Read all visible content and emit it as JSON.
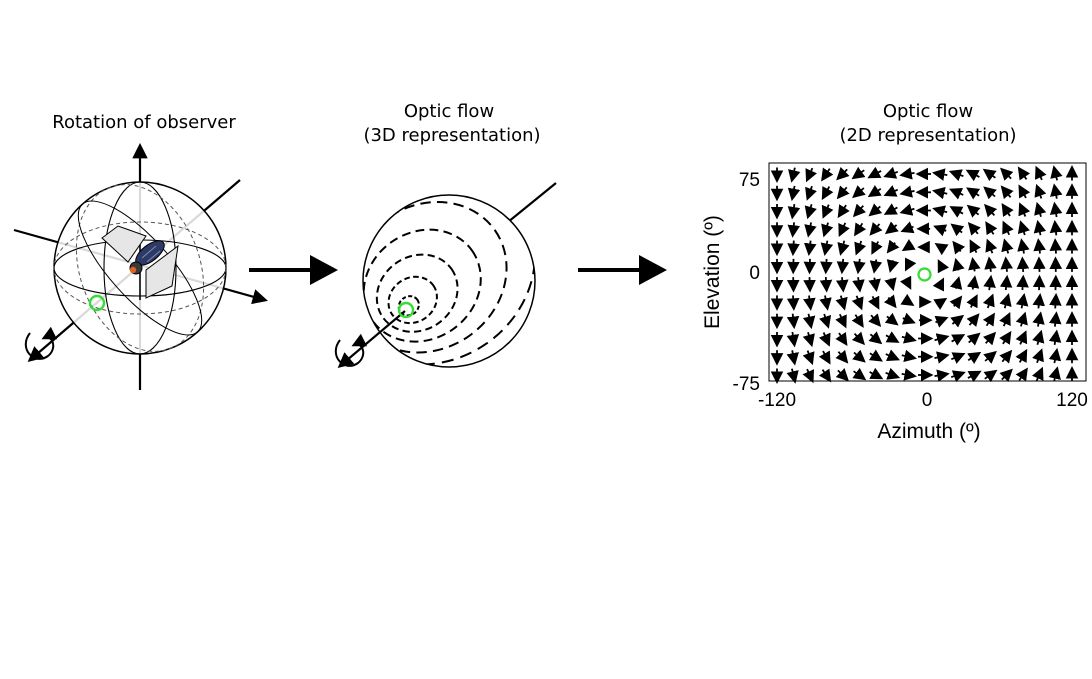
{
  "panel1": {
    "title": "Rotation of observer"
  },
  "panel2": {
    "title_line1": "Optic flow",
    "title_line2": "(3D representation)"
  },
  "panel3": {
    "title_line1": "Optic flow",
    "title_line2": "(2D representation)",
    "xlabel": "Azimuth (º)",
    "ylabel": "Elevation (º)",
    "xticks": [
      "-120",
      "0",
      "120"
    ],
    "yticks": [
      "75",
      "0",
      "-75"
    ]
  },
  "colors": {
    "focus_marker": "#33dd33",
    "ink": "#000000",
    "wing": "#e6e6e6"
  },
  "chart_data": {
    "type": "quiver",
    "xlim": [
      -120,
      120
    ],
    "ylim": [
      -75,
      75
    ],
    "x_ticks": [
      -120,
      0,
      120
    ],
    "y_ticks": [
      -75,
      0,
      75
    ],
    "flow_center": [
      0,
      0
    ]
  }
}
